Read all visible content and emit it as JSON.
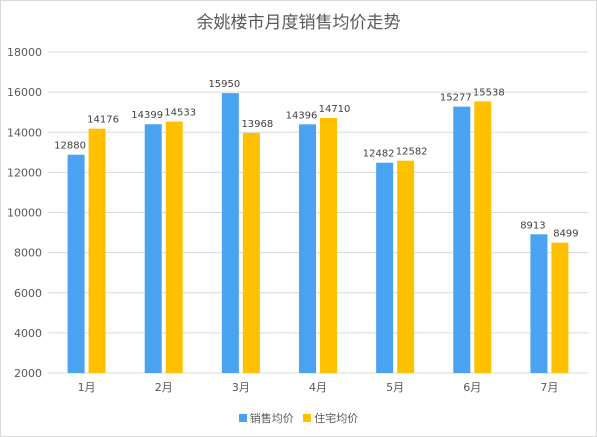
{
  "chart_data": {
    "type": "bar",
    "title": "余姚楼市月度销售均价走势",
    "categories": [
      "1月",
      "2月",
      "3月",
      "4月",
      "5月",
      "6月",
      "7月"
    ],
    "series": [
      {
        "name": "销售均价",
        "color": "#4aa3f0",
        "values": [
          12880,
          14399,
          15950,
          14396,
          12482,
          15277,
          8913
        ]
      },
      {
        "name": "住宅均价",
        "color": "#ffc000",
        "values": [
          14176,
          14533,
          13968,
          14710,
          12582,
          15538,
          8499
        ]
      }
    ],
    "ylim": [
      2000,
      18000
    ],
    "yticks": [
      2000,
      4000,
      6000,
      8000,
      10000,
      12000,
      14000,
      16000,
      18000
    ],
    "grid": true,
    "legend_position": "bottom",
    "xlabel": "",
    "ylabel": ""
  }
}
